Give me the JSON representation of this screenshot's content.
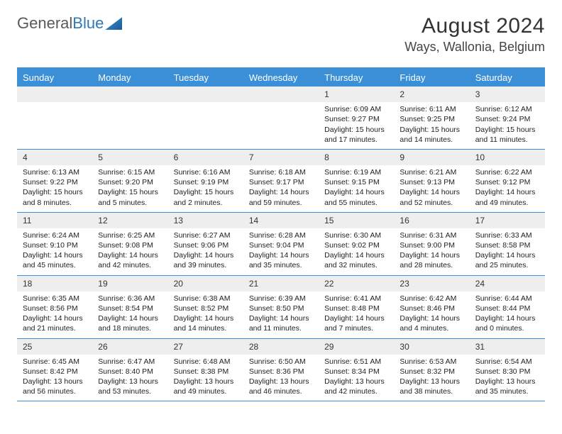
{
  "logo": {
    "word1": "General",
    "word2": "Blue"
  },
  "header": {
    "month_title": "August 2024",
    "location": "Ways, Wallonia, Belgium"
  },
  "colors": {
    "header_bg": "#3a8fd6",
    "daynum_bg": "#eeeeee",
    "border": "#3a8fd6"
  },
  "days_of_week": [
    "Sunday",
    "Monday",
    "Tuesday",
    "Wednesday",
    "Thursday",
    "Friday",
    "Saturday"
  ],
  "weeks": [
    [
      null,
      null,
      null,
      null,
      {
        "n": "1",
        "sunrise": "6:09 AM",
        "sunset": "9:27 PM",
        "daylight": "15 hours and 17 minutes."
      },
      {
        "n": "2",
        "sunrise": "6:11 AM",
        "sunset": "9:25 PM",
        "daylight": "15 hours and 14 minutes."
      },
      {
        "n": "3",
        "sunrise": "6:12 AM",
        "sunset": "9:24 PM",
        "daylight": "15 hours and 11 minutes."
      }
    ],
    [
      {
        "n": "4",
        "sunrise": "6:13 AM",
        "sunset": "9:22 PM",
        "daylight": "15 hours and 8 minutes."
      },
      {
        "n": "5",
        "sunrise": "6:15 AM",
        "sunset": "9:20 PM",
        "daylight": "15 hours and 5 minutes."
      },
      {
        "n": "6",
        "sunrise": "6:16 AM",
        "sunset": "9:19 PM",
        "daylight": "15 hours and 2 minutes."
      },
      {
        "n": "7",
        "sunrise": "6:18 AM",
        "sunset": "9:17 PM",
        "daylight": "14 hours and 59 minutes."
      },
      {
        "n": "8",
        "sunrise": "6:19 AM",
        "sunset": "9:15 PM",
        "daylight": "14 hours and 55 minutes."
      },
      {
        "n": "9",
        "sunrise": "6:21 AM",
        "sunset": "9:13 PM",
        "daylight": "14 hours and 52 minutes."
      },
      {
        "n": "10",
        "sunrise": "6:22 AM",
        "sunset": "9:12 PM",
        "daylight": "14 hours and 49 minutes."
      }
    ],
    [
      {
        "n": "11",
        "sunrise": "6:24 AM",
        "sunset": "9:10 PM",
        "daylight": "14 hours and 45 minutes."
      },
      {
        "n": "12",
        "sunrise": "6:25 AM",
        "sunset": "9:08 PM",
        "daylight": "14 hours and 42 minutes."
      },
      {
        "n": "13",
        "sunrise": "6:27 AM",
        "sunset": "9:06 PM",
        "daylight": "14 hours and 39 minutes."
      },
      {
        "n": "14",
        "sunrise": "6:28 AM",
        "sunset": "9:04 PM",
        "daylight": "14 hours and 35 minutes."
      },
      {
        "n": "15",
        "sunrise": "6:30 AM",
        "sunset": "9:02 PM",
        "daylight": "14 hours and 32 minutes."
      },
      {
        "n": "16",
        "sunrise": "6:31 AM",
        "sunset": "9:00 PM",
        "daylight": "14 hours and 28 minutes."
      },
      {
        "n": "17",
        "sunrise": "6:33 AM",
        "sunset": "8:58 PM",
        "daylight": "14 hours and 25 minutes."
      }
    ],
    [
      {
        "n": "18",
        "sunrise": "6:35 AM",
        "sunset": "8:56 PM",
        "daylight": "14 hours and 21 minutes."
      },
      {
        "n": "19",
        "sunrise": "6:36 AM",
        "sunset": "8:54 PM",
        "daylight": "14 hours and 18 minutes."
      },
      {
        "n": "20",
        "sunrise": "6:38 AM",
        "sunset": "8:52 PM",
        "daylight": "14 hours and 14 minutes."
      },
      {
        "n": "21",
        "sunrise": "6:39 AM",
        "sunset": "8:50 PM",
        "daylight": "14 hours and 11 minutes."
      },
      {
        "n": "22",
        "sunrise": "6:41 AM",
        "sunset": "8:48 PM",
        "daylight": "14 hours and 7 minutes."
      },
      {
        "n": "23",
        "sunrise": "6:42 AM",
        "sunset": "8:46 PM",
        "daylight": "14 hours and 4 minutes."
      },
      {
        "n": "24",
        "sunrise": "6:44 AM",
        "sunset": "8:44 PM",
        "daylight": "14 hours and 0 minutes."
      }
    ],
    [
      {
        "n": "25",
        "sunrise": "6:45 AM",
        "sunset": "8:42 PM",
        "daylight": "13 hours and 56 minutes."
      },
      {
        "n": "26",
        "sunrise": "6:47 AM",
        "sunset": "8:40 PM",
        "daylight": "13 hours and 53 minutes."
      },
      {
        "n": "27",
        "sunrise": "6:48 AM",
        "sunset": "8:38 PM",
        "daylight": "13 hours and 49 minutes."
      },
      {
        "n": "28",
        "sunrise": "6:50 AM",
        "sunset": "8:36 PM",
        "daylight": "13 hours and 46 minutes."
      },
      {
        "n": "29",
        "sunrise": "6:51 AM",
        "sunset": "8:34 PM",
        "daylight": "13 hours and 42 minutes."
      },
      {
        "n": "30",
        "sunrise": "6:53 AM",
        "sunset": "8:32 PM",
        "daylight": "13 hours and 38 minutes."
      },
      {
        "n": "31",
        "sunrise": "6:54 AM",
        "sunset": "8:30 PM",
        "daylight": "13 hours and 35 minutes."
      }
    ]
  ],
  "labels": {
    "sunrise": "Sunrise: ",
    "sunset": "Sunset: ",
    "daylight": "Daylight: "
  }
}
